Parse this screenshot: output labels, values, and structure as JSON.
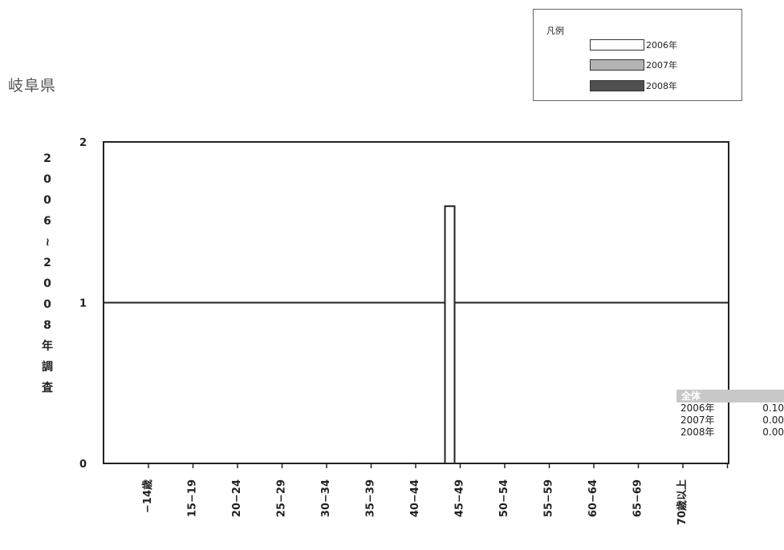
{
  "prefecture": "岐阜県",
  "legend": {
    "title": "凡例",
    "items": [
      {
        "label": "2006年",
        "color": "#ffffff"
      },
      {
        "label": "2007年",
        "color": "#b4b4b4"
      },
      {
        "label": "2008年",
        "color": "#505050"
      }
    ]
  },
  "summary": {
    "title": "全体",
    "rows": [
      {
        "year": "2006年",
        "value": "0.10"
      },
      {
        "year": "2007年",
        "value": "0.00"
      },
      {
        "year": "2008年",
        "value": "0.00"
      }
    ]
  },
  "chart_data": {
    "type": "bar",
    "title": "",
    "ylabel": "2006~2008年調査",
    "ylabel_chars": [
      "2",
      "0",
      "0",
      "6",
      "~",
      "2",
      "0",
      "0",
      "8",
      "年",
      "調",
      "査"
    ],
    "xlabel": "",
    "ylim": [
      0,
      2
    ],
    "yticks": [
      "0",
      "1",
      "2"
    ],
    "grid": "horizontal",
    "categories": [
      "−14歳",
      "15−19",
      "20−24",
      "25−29",
      "30−34",
      "35−39",
      "40−44",
      "45−49",
      "50−54",
      "55−59",
      "60−64",
      "65−69",
      "70歳以上"
    ],
    "series": [
      {
        "name": "2006年",
        "color": "#ffffff",
        "values": [
          0,
          0,
          0,
          0,
          0,
          0,
          0,
          1.6,
          0,
          0,
          0,
          0,
          0
        ]
      },
      {
        "name": "2007年",
        "color": "#b4b4b4",
        "values": [
          0,
          0,
          0,
          0,
          0,
          0,
          0,
          0,
          0,
          0,
          0,
          0,
          0
        ]
      },
      {
        "name": "2008年",
        "color": "#505050",
        "values": [
          0,
          0,
          0,
          0,
          0,
          0,
          0,
          0,
          0,
          0,
          0,
          0,
          0
        ]
      }
    ]
  }
}
